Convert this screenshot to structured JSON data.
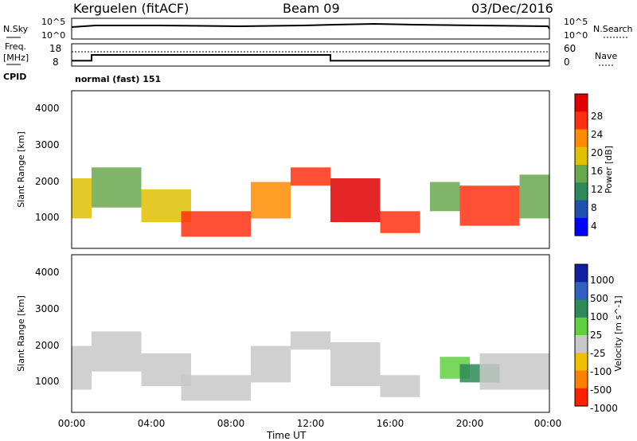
{
  "header": {
    "station": "Kerguelen (fitACF)",
    "beam": "Beam 09",
    "date": "03/Dec/2016"
  },
  "noise_panel": {
    "left_label": "N.Sky",
    "right_label": "N.Search",
    "ticks_left": [
      "10^5",
      "10^0"
    ],
    "ticks_right": [
      "10^5",
      "10^0"
    ]
  },
  "freq_panel": {
    "left_label_1": "Freq.",
    "left_label_2": "[MHz]",
    "left_ticks": [
      "18",
      "8"
    ],
    "right_label": "Nave",
    "right_ticks": [
      "60",
      "0"
    ]
  },
  "cpid": {
    "label": "CPID",
    "mode": "normal (fast) 151"
  },
  "power_panel": {
    "ylabel": "Slant Range [km]",
    "yticks": [
      "4000",
      "3000",
      "2000",
      "1000"
    ],
    "colorbar_label": "Power [dB]",
    "colorbar_ticks": [
      "28",
      "24",
      "20",
      "16",
      "12",
      "8",
      "4"
    ],
    "colors": [
      "#0000ff",
      "#2050b0",
      "#2e8b57",
      "#6aa84f",
      "#e0c000",
      "#ff8c00",
      "#ff3010",
      "#e00000"
    ]
  },
  "velocity_panel": {
    "ylabel": "Slant Range [km]",
    "yticks": [
      "4000",
      "3000",
      "2000",
      "1000"
    ],
    "colorbar_label": "Velocity [m s^-1]",
    "colorbar_ticks": [
      "1000",
      "500",
      "100",
      "25",
      "-25",
      "-100",
      "-500",
      "-1000"
    ],
    "colors": [
      "#1020a0",
      "#3060c0",
      "#2e8b57",
      "#60d040",
      "#c8c8c8",
      "#f0c000",
      "#ff8000",
      "#ff2000"
    ]
  },
  "x_axis": {
    "ticks": [
      "00:00",
      "04:00",
      "08:00",
      "12:00",
      "16:00",
      "20:00",
      "00:00"
    ],
    "label": "Time UT"
  },
  "chart_data": {
    "type": "heatmap",
    "x_range_hours": [
      0,
      24
    ],
    "y_range_km": [
      180,
      4500
    ],
    "freq_mhz": [
      {
        "from_h": 0,
        "to_h": 1,
        "value": 10
      },
      {
        "from_h": 1,
        "to_h": 13,
        "value": 13
      },
      {
        "from_h": 13,
        "to_h": 24,
        "value": 10
      }
    ],
    "nave": [
      {
        "from_h": 0,
        "to_h": 24,
        "value": 40
      }
    ],
    "power_regions": [
      {
        "start_h": 0.0,
        "end_h": 1.0,
        "min_km": 1000,
        "max_km": 2100,
        "level": 4
      },
      {
        "start_h": 1.0,
        "end_h": 3.5,
        "min_km": 1300,
        "max_km": 2400,
        "level": 3
      },
      {
        "start_h": 3.5,
        "end_h": 6.0,
        "min_km": 900,
        "max_km": 1800,
        "level": 4
      },
      {
        "start_h": 5.5,
        "end_h": 9.0,
        "min_km": 500,
        "max_km": 1200,
        "level": 6
      },
      {
        "start_h": 9.0,
        "end_h": 11.0,
        "min_km": 1000,
        "max_km": 2000,
        "level": 5
      },
      {
        "start_h": 11.0,
        "end_h": 13.0,
        "min_km": 1900,
        "max_km": 2400,
        "level": 6
      },
      {
        "start_h": 13.0,
        "end_h": 15.5,
        "min_km": 900,
        "max_km": 2100,
        "level": 7
      },
      {
        "start_h": 15.5,
        "end_h": 17.5,
        "min_km": 600,
        "max_km": 1200,
        "level": 6
      },
      {
        "start_h": 18.0,
        "end_h": 19.5,
        "min_km": 1200,
        "max_km": 2000,
        "level": 3
      },
      {
        "start_h": 19.5,
        "end_h": 22.5,
        "min_km": 800,
        "max_km": 1900,
        "level": 6
      },
      {
        "start_h": 22.5,
        "end_h": 24.0,
        "min_km": 1000,
        "max_km": 2200,
        "level": 3
      }
    ],
    "velocity_regions": [
      {
        "start_h": 0.0,
        "end_h": 1.0,
        "min_km": 800,
        "max_km": 2000,
        "level": 4
      },
      {
        "start_h": 1.0,
        "end_h": 3.5,
        "min_km": 1300,
        "max_km": 2400,
        "level": 4
      },
      {
        "start_h": 3.5,
        "end_h": 6.0,
        "min_km": 900,
        "max_km": 1800,
        "level": 4
      },
      {
        "start_h": 5.5,
        "end_h": 9.0,
        "min_km": 500,
        "max_km": 1200,
        "level": 4
      },
      {
        "start_h": 9.0,
        "end_h": 11.0,
        "min_km": 1000,
        "max_km": 2000,
        "level": 4
      },
      {
        "start_h": 11.0,
        "end_h": 13.0,
        "min_km": 1900,
        "max_km": 2400,
        "level": 4
      },
      {
        "start_h": 13.0,
        "end_h": 15.5,
        "min_km": 900,
        "max_km": 2100,
        "level": 4
      },
      {
        "start_h": 15.5,
        "end_h": 17.5,
        "min_km": 600,
        "max_km": 1200,
        "level": 4
      },
      {
        "start_h": 18.5,
        "end_h": 20.0,
        "min_km": 1100,
        "max_km": 1700,
        "level": 3
      },
      {
        "start_h": 19.5,
        "end_h": 21.5,
        "min_km": 1000,
        "max_km": 1500,
        "level": 2
      },
      {
        "start_h": 20.5,
        "end_h": 24.0,
        "min_km": 800,
        "max_km": 1800,
        "level": 4
      }
    ]
  }
}
